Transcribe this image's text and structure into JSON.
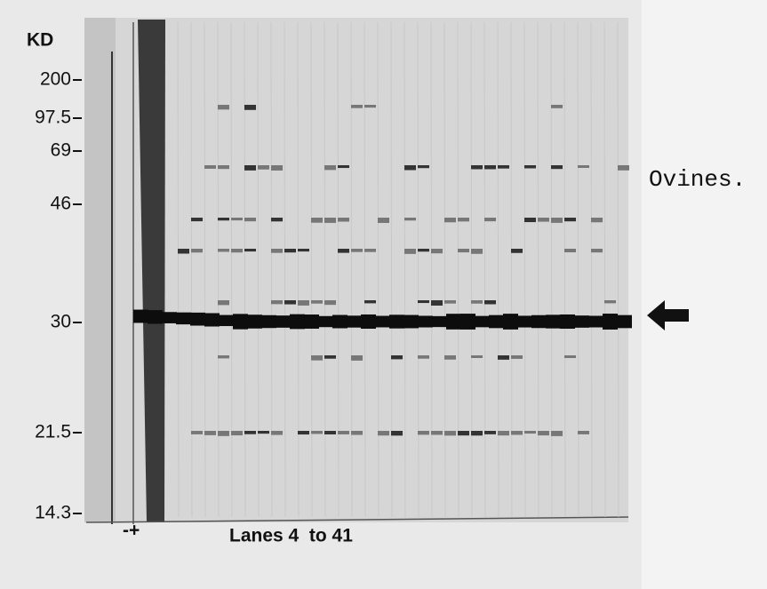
{
  "markers": {
    "unit": "KD",
    "labels": [
      "200",
      "97.5",
      "69",
      "46",
      "30",
      "21.5",
      "14.3"
    ]
  },
  "lane_signs": "-+",
  "caption": "Lanes 4  to 41",
  "annotation": "Ovines."
}
